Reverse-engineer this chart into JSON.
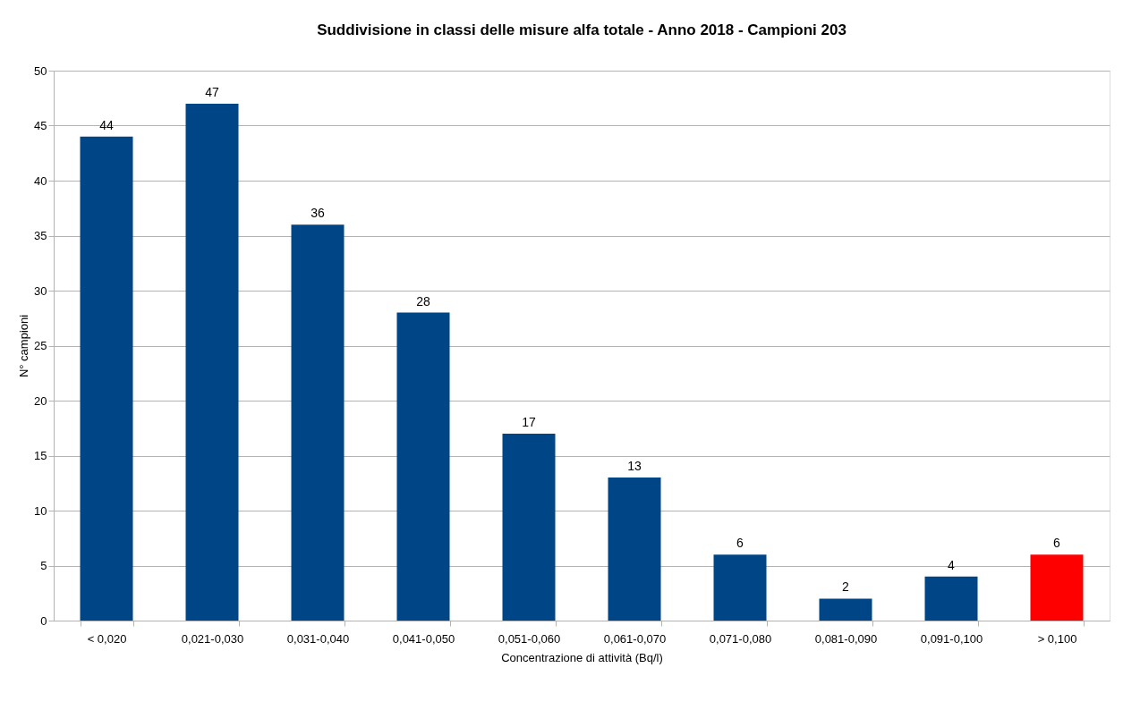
{
  "chart_data": {
    "type": "bar",
    "title": "Suddivisione in classi delle misure alfa totale - Anno 2018 - Campioni 203",
    "xlabel": "Concentrazione di attività (Bq/l)",
    "ylabel": "N° campioni",
    "categories": [
      "< 0,020",
      "0,021-0,030",
      "0,031-0,040",
      "0,041-0,050",
      "0,051-0,060",
      "0,061-0,070",
      "0,071-0,080",
      "0,081-0,090",
      "0,091-0,100",
      "> 0,100"
    ],
    "values": [
      44,
      47,
      36,
      28,
      17,
      13,
      6,
      2,
      4,
      6
    ],
    "colors": [
      "#004586",
      "#004586",
      "#004586",
      "#004586",
      "#004586",
      "#004586",
      "#004586",
      "#004586",
      "#004586",
      "#ff0000"
    ],
    "ylim": [
      0,
      50
    ],
    "yticks": [
      0,
      5,
      10,
      15,
      20,
      25,
      30,
      35,
      40,
      45,
      50
    ],
    "grid": "y",
    "data_labels": true
  }
}
